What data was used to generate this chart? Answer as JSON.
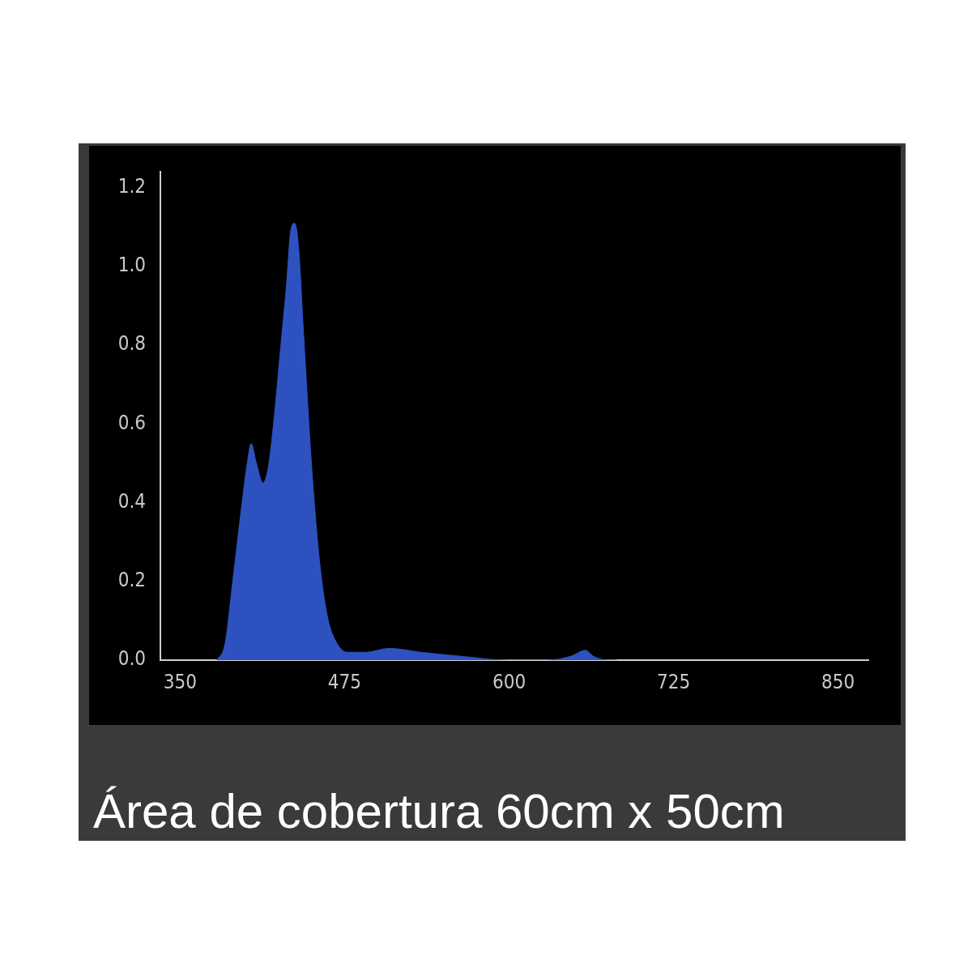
{
  "chart_data": {
    "type": "area",
    "x": [
      378,
      384,
      390,
      396,
      401,
      404,
      408,
      413,
      417,
      421,
      426,
      431,
      434,
      437,
      440,
      444,
      450,
      456,
      462,
      468,
      477,
      491,
      509,
      533,
      563,
      599,
      629,
      647,
      658,
      664,
      676,
      682
    ],
    "series": [
      {
        "color": "#2d52c0",
        "values": [
          0,
          0.04,
          0.2,
          0.37,
          0.5,
          0.55,
          0.5,
          0.45,
          0.49,
          0.6,
          0.78,
          0.96,
          1.09,
          1.11,
          1.05,
          0.82,
          0.49,
          0.25,
          0.11,
          0.05,
          0.02,
          0.02,
          0.03,
          0.02,
          0.01,
          0,
          0,
          0.01,
          0.025,
          0.01,
          0,
          0
        ]
      }
    ],
    "xlim": [
      335,
      873
    ],
    "xticks": [
      350,
      475,
      600,
      725,
      850
    ],
    "ylim": [
      0,
      1.24
    ],
    "yticks": [
      {
        "value": 0,
        "label": "0.0"
      },
      0.2,
      0.4,
      0.6,
      0.8,
      {
        "value": 1,
        "label": "1.0"
      },
      1.2
    ],
    "marker": "none",
    "annotations": [
      "Área de cobertura 60cm x 50cm"
    ]
  }
}
